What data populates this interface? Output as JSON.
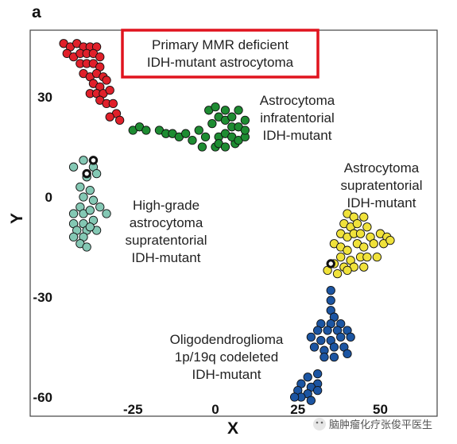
{
  "panel_label": "a",
  "watermark": "脑肿瘤化疗张俊平医生",
  "chart_data": {
    "type": "scatter",
    "xlabel": "X",
    "ylabel": "Y",
    "xlim": [
      -49,
      58
    ],
    "ylim": [
      -65,
      50
    ],
    "xticks": [
      -25,
      0,
      25,
      50
    ],
    "yticks": [
      30,
      0,
      -30,
      -60
    ],
    "grid": false,
    "highlight_label": [
      "Primary MMR deficient",
      "IDH-mutant astrocytoma"
    ],
    "highlight_color": "#e0141e",
    "series": [
      {
        "label_lines": [],
        "color": "#e0202a",
        "points": [
          [
            -46,
            46
          ],
          [
            -44,
            45
          ],
          [
            -42,
            46
          ],
          [
            -40,
            45
          ],
          [
            -38,
            45
          ],
          [
            -36,
            45
          ],
          [
            -45,
            43
          ],
          [
            -43,
            42
          ],
          [
            -41,
            43
          ],
          [
            -39,
            43
          ],
          [
            -37,
            43
          ],
          [
            -35,
            42
          ],
          [
            -41,
            40
          ],
          [
            -39,
            40
          ],
          [
            -37,
            40
          ],
          [
            -35,
            39
          ],
          [
            -40,
            37
          ],
          [
            -38,
            36
          ],
          [
            -36,
            37
          ],
          [
            -34,
            36
          ],
          [
            -33,
            35
          ],
          [
            -37,
            34
          ],
          [
            -35,
            33
          ],
          [
            -38,
            31
          ],
          [
            -36,
            31
          ],
          [
            -34,
            31
          ],
          [
            -32,
            32
          ],
          [
            -35,
            29
          ],
          [
            -33,
            28
          ],
          [
            -31,
            28
          ],
          [
            -30,
            25
          ],
          [
            -29,
            23
          ],
          [
            -32,
            24
          ]
        ]
      },
      {
        "label_lines": [
          "Astrocytoma",
          "infratentorial",
          "IDH-mutant"
        ],
        "color": "#1e8c32",
        "points": [
          [
            -25,
            20
          ],
          [
            -23,
            21
          ],
          [
            -21,
            20
          ],
          [
            -17,
            20
          ],
          [
            -15,
            19
          ],
          [
            -13,
            19
          ],
          [
            -11,
            18
          ],
          [
            -9,
            19
          ],
          [
            -5,
            20
          ],
          [
            -7,
            17
          ],
          [
            -3,
            18
          ],
          [
            -4,
            15
          ],
          [
            0,
            15
          ],
          [
            1,
            18
          ],
          [
            -1,
            22
          ],
          [
            1,
            24
          ],
          [
            -2,
            26
          ],
          [
            0,
            27
          ],
          [
            3,
            26
          ],
          [
            3,
            23
          ],
          [
            5,
            21
          ],
          [
            3,
            19
          ],
          [
            1,
            16
          ],
          [
            3,
            15
          ],
          [
            6,
            16
          ],
          [
            5,
            18
          ],
          [
            7,
            17
          ],
          [
            7,
            21
          ],
          [
            9,
            18
          ],
          [
            9,
            23
          ],
          [
            5,
            24
          ],
          [
            7,
            26
          ],
          [
            9,
            20
          ]
        ]
      },
      {
        "label_lines": [
          "High-grade",
          "astrocytoma",
          "supratentorial",
          "IDH-mutant"
        ],
        "color": "#84c8b4",
        "points": [
          [
            -43,
            9
          ],
          [
            -40,
            11
          ],
          [
            -37,
            9
          ],
          [
            -39,
            6
          ],
          [
            -36,
            7
          ],
          [
            -41,
            3
          ],
          [
            -38,
            2
          ],
          [
            -40,
            0
          ],
          [
            -37,
            -1
          ],
          [
            -41,
            -3
          ],
          [
            -43,
            -5
          ],
          [
            -40,
            -5
          ],
          [
            -38,
            -4
          ],
          [
            -35,
            -3
          ],
          [
            -43,
            -8
          ],
          [
            -40,
            -8
          ],
          [
            -37,
            -7
          ],
          [
            -33,
            -5
          ],
          [
            -42,
            -10
          ],
          [
            -39,
            -10
          ],
          [
            -36,
            -10
          ],
          [
            -43,
            -12
          ],
          [
            -40,
            -12
          ],
          [
            -38,
            -9
          ],
          [
            -41,
            -14
          ],
          [
            -39,
            -15
          ]
        ]
      },
      {
        "label_lines": [
          "Astrocytoma",
          "supratentorial",
          "IDH-mutant"
        ],
        "color": "#f0e23a",
        "points": [
          [
            40,
            -5
          ],
          [
            42,
            -6
          ],
          [
            45,
            -6
          ],
          [
            39,
            -8
          ],
          [
            41,
            -9
          ],
          [
            43,
            -8
          ],
          [
            46,
            -9
          ],
          [
            38,
            -11
          ],
          [
            40,
            -12
          ],
          [
            42,
            -11
          ],
          [
            44,
            -11
          ],
          [
            47,
            -12
          ],
          [
            50,
            -11
          ],
          [
            52,
            -12
          ],
          [
            36,
            -14
          ],
          [
            38,
            -15
          ],
          [
            40,
            -16
          ],
          [
            43,
            -14
          ],
          [
            45,
            -15
          ],
          [
            48,
            -14
          ],
          [
            51,
            -14
          ],
          [
            53,
            -13
          ],
          [
            38,
            -18
          ],
          [
            41,
            -19
          ],
          [
            44,
            -18
          ],
          [
            46,
            -18
          ],
          [
            49,
            -18
          ],
          [
            36,
            -20
          ],
          [
            39,
            -21
          ],
          [
            42,
            -21
          ],
          [
            45,
            -21
          ],
          [
            34,
            -22
          ],
          [
            37,
            -23
          ],
          [
            40,
            -22
          ]
        ]
      },
      {
        "label_lines": [
          "Oligodendroglioma",
          "1p/19q codeleted",
          "IDH-mutant"
        ],
        "color": "#1c55a2",
        "points": [
          [
            35,
            -28
          ],
          [
            35,
            -31
          ],
          [
            35,
            -34
          ],
          [
            36,
            -36
          ],
          [
            32,
            -38
          ],
          [
            35,
            -38
          ],
          [
            38,
            -38
          ],
          [
            31,
            -40
          ],
          [
            34,
            -40
          ],
          [
            37,
            -40
          ],
          [
            40,
            -40
          ],
          [
            29,
            -42
          ],
          [
            32,
            -43
          ],
          [
            35,
            -43
          ],
          [
            38,
            -42
          ],
          [
            41,
            -42
          ],
          [
            30,
            -45
          ],
          [
            33,
            -46
          ],
          [
            36,
            -45
          ],
          [
            39,
            -45
          ],
          [
            33,
            -48
          ],
          [
            36,
            -48
          ],
          [
            40,
            -47
          ],
          [
            31,
            -53
          ],
          [
            28,
            -54
          ],
          [
            31,
            -56
          ],
          [
            26,
            -56
          ],
          [
            29,
            -57
          ],
          [
            25,
            -58
          ],
          [
            28,
            -59
          ],
          [
            31,
            -58
          ],
          [
            26,
            -60
          ],
          [
            29,
            -61
          ],
          [
            24,
            -60
          ]
        ]
      },
      {
        "label_lines": [],
        "color": "#ffffff",
        "ring": true,
        "points": [
          [
            -37,
            11
          ],
          [
            -39,
            7
          ],
          [
            35,
            -20
          ]
        ]
      }
    ]
  }
}
